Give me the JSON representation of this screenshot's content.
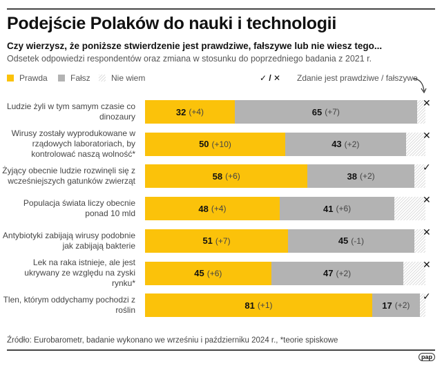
{
  "title": "Podejście Polaków do nauki i technologii",
  "subtitle": "Czy wierzysz, że poniższe stwierdzenie jest prawdziwe, fałszywe lub nie wiesz tego...",
  "description": "Odsetek odpowiedzi respondentów oraz zmiana w stosunku do poprzedniego badania z 2021 r.",
  "legend": {
    "true": "Prawda",
    "false": "Fałsz",
    "dontknow": "Nie wiem",
    "verdict_symbols": "✓ / ✕",
    "verdict_label": "Zdanie jest prawdziwe / fałszywe"
  },
  "colors": {
    "true": "#fbc20a",
    "false": "#b3b3b3",
    "dontknow": "hatched light gray"
  },
  "source": "Źródło: Eurobarometr, badanie wykonano we wrześniu i październiku 2024 r., *teorie spiskowe",
  "logo": "pap",
  "chart_data": {
    "type": "bar",
    "orientation": "horizontal-stacked-100",
    "categories": [
      "Ludzie żyli w tym samym czasie co dinozaury",
      "Wirusy zostały wyprodukowane w rządowych laboratoriach, by kontrolować naszą wolność*",
      "Żyjący obecnie ludzie rozwinęli się z wcześniejszych gatunków zwierząt",
      "Populacja świata liczy obecnie ponad 10 mld",
      "Antybiotyki zabijają wirusy podobnie jak zabijają bakterie",
      "Lek na raka istnieje, ale jest ukrywany ze względu na zyski rynku*",
      "Tlen, którym oddychamy pochodzi z roślin"
    ],
    "series": [
      {
        "name": "Prawda",
        "values": [
          32,
          50,
          58,
          48,
          51,
          45,
          81
        ],
        "changes": [
          "(+4)",
          "(+10)",
          "(+6)",
          "(+4)",
          "(+7)",
          "(+6)",
          "(+1)"
        ]
      },
      {
        "name": "Fałsz",
        "values": [
          65,
          43,
          38,
          41,
          45,
          47,
          17
        ],
        "changes": [
          "(+7)",
          "(+2)",
          "(+2)",
          "(+6)",
          "(-1)",
          "(+2)",
          "(+2)"
        ]
      },
      {
        "name": "Nie wiem",
        "values": [
          3,
          7,
          4,
          11,
          4,
          8,
          2
        ]
      }
    ],
    "verdict": [
      "false",
      "false",
      "true",
      "false",
      "false",
      "false",
      "true"
    ],
    "xlim": [
      0,
      100
    ]
  }
}
